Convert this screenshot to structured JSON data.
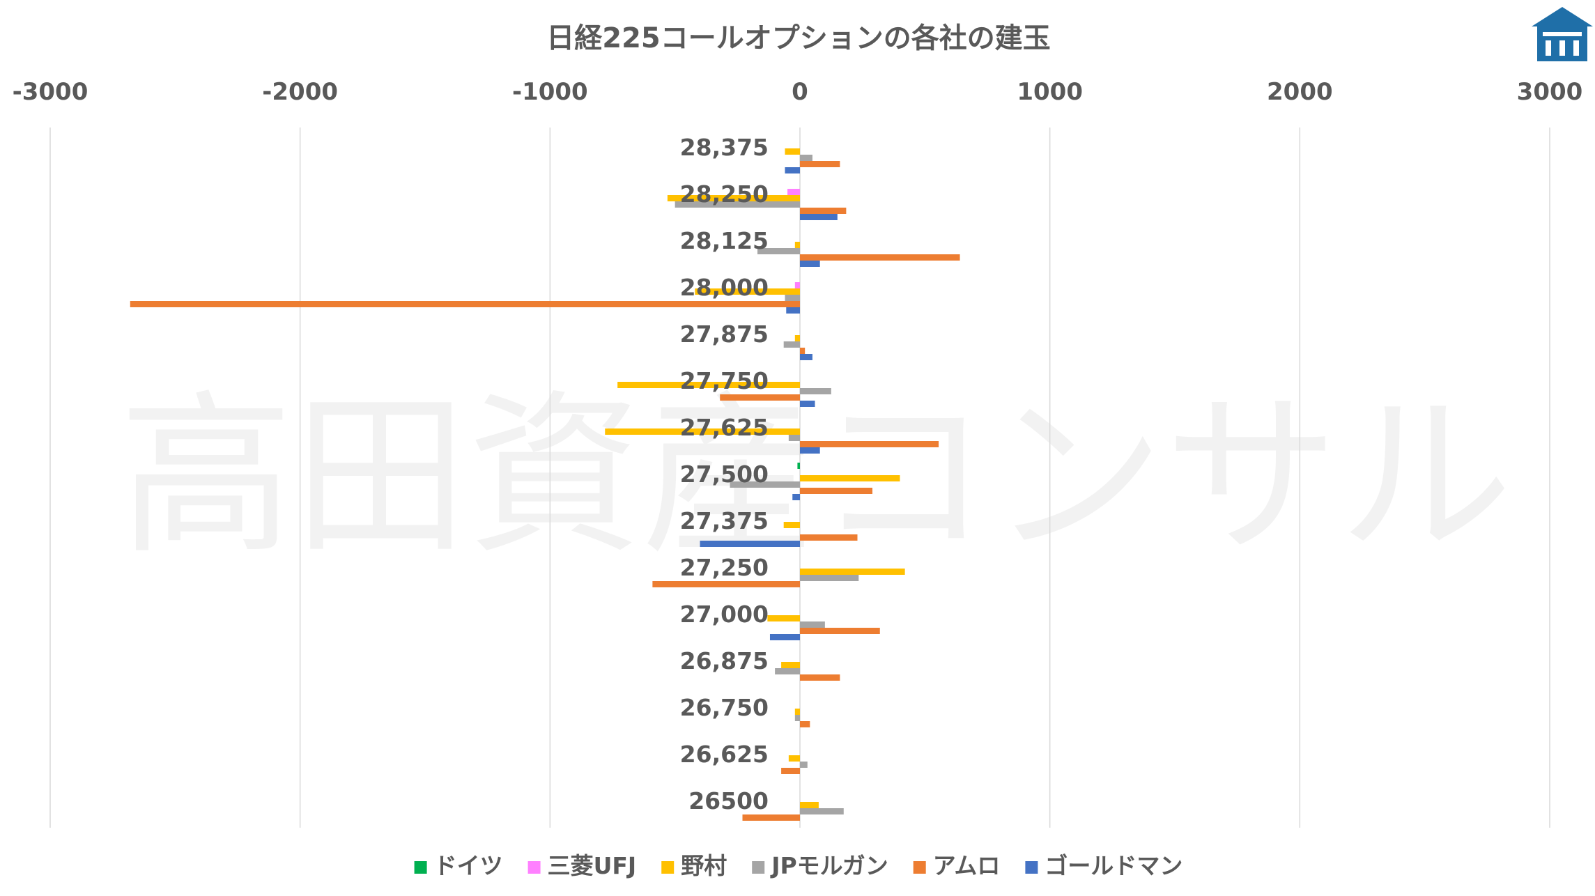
{
  "watermark": "高田資産コンサル",
  "logo": {
    "color": "#1f6fa8",
    "icon": "building-logo"
  },
  "chart_data": {
    "type": "bar",
    "orientation": "horizontal",
    "title": "日経225コールオプションの各社の建玉",
    "xlabel": "",
    "ylabel": "",
    "xlim": [
      -3000,
      3000
    ],
    "xticks": [
      -3000,
      -2000,
      -1000,
      0,
      1000,
      2000,
      3000
    ],
    "tick_labels": [
      "-3000",
      "-2000",
      "-1000",
      "0",
      "1000",
      "2000",
      "3000"
    ],
    "grid": true,
    "legend_position": "bottom",
    "categories": [
      "28,375",
      "28,250",
      "28,125",
      "28,000",
      "27,875",
      "27,750",
      "27,625",
      "27,500",
      "27,375",
      "27,250",
      "27,000",
      "26,875",
      "26,750",
      "26,625",
      "26500"
    ],
    "series": [
      {
        "name": "ドイツ",
        "color": "#00b050",
        "values": [
          0,
          0,
          0,
          0,
          0,
          0,
          0,
          -10,
          0,
          0,
          0,
          0,
          0,
          0,
          0
        ]
      },
      {
        "name": "三菱UFJ",
        "color": "#ff80ff",
        "values": [
          0,
          -50,
          0,
          -20,
          0,
          0,
          0,
          0,
          0,
          0,
          0,
          0,
          0,
          0,
          0
        ]
      },
      {
        "name": "野村",
        "color": "#ffc000",
        "values": [
          -60,
          -530,
          -20,
          -420,
          -20,
          -730,
          -780,
          400,
          -65,
          420,
          -130,
          -75,
          -20,
          -45,
          75
        ]
      },
      {
        "name": "JPモルガン",
        "color": "#a5a5a5",
        "values": [
          50,
          -500,
          -170,
          -60,
          -65,
          125,
          -45,
          -280,
          0,
          235,
          100,
          -100,
          -20,
          30,
          175
        ]
      },
      {
        "name": "アムロ",
        "color": "#ed7d31",
        "values": [
          160,
          185,
          640,
          -2680,
          20,
          -320,
          555,
          290,
          230,
          -590,
          320,
          160,
          40,
          -75,
          -230
        ]
      },
      {
        "name": "ゴールドマン",
        "color": "#4472c4",
        "values": [
          -60,
          150,
          80,
          -55,
          50,
          60,
          80,
          -30,
          -400,
          0,
          -120,
          0,
          0,
          0,
          0
        ]
      }
    ]
  }
}
